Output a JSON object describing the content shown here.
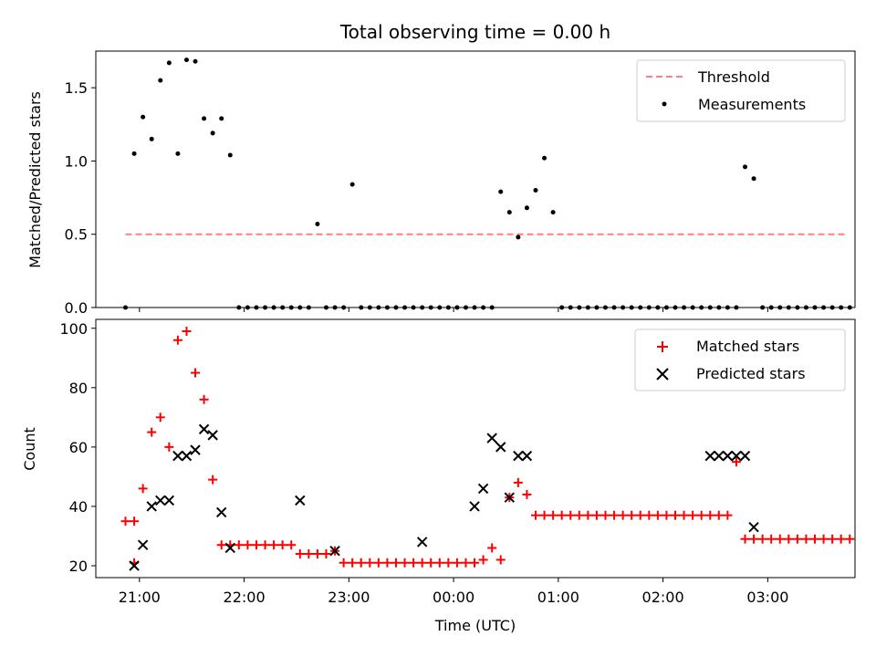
{
  "figure": {
    "title": "Total observing time = 0.00 h"
  },
  "colors": {
    "threshold": "#ff7f7f",
    "measurements": "#000000",
    "matched": "#ff0000",
    "predicted": "#000000"
  },
  "chart_data": [
    {
      "type": "scatter",
      "panel": "top",
      "ylabel": "Matched/Predicted stars",
      "xlabel": "",
      "ylim": [
        0,
        1.75
      ],
      "yticks": [
        0.0,
        0.5,
        1.0,
        1.5
      ],
      "ytick_labels": [
        "0.0",
        "0.5",
        "1.0",
        "1.5"
      ],
      "legend_position": "top-right",
      "legend": [
        "Threshold",
        "Measurements"
      ],
      "series": [
        {
          "name": "Threshold",
          "kind": "dashed-line",
          "x": [
            "20:52",
            "03:45"
          ],
          "y": [
            0.5,
            0.5
          ]
        },
        {
          "name": "Measurements",
          "kind": "points",
          "x": [
            "20:52",
            "20:57",
            "21:02",
            "21:07",
            "21:12",
            "21:17",
            "21:22",
            "21:27",
            "21:32",
            "21:37",
            "21:42",
            "21:47",
            "21:52",
            "21:57",
            "22:02",
            "22:07",
            "22:12",
            "22:17",
            "22:22",
            "22:27",
            "22:32",
            "22:37",
            "22:42",
            "22:47",
            "22:52",
            "22:57",
            "23:02",
            "23:07",
            "23:12",
            "23:17",
            "23:22",
            "23:27",
            "23:32",
            "23:37",
            "23:42",
            "23:47",
            "23:52",
            "23:57",
            "00:02",
            "00:07",
            "00:12",
            "00:17",
            "00:22",
            "00:27",
            "00:32",
            "00:37",
            "00:42",
            "00:47",
            "00:52",
            "00:57",
            "01:02",
            "01:07",
            "01:12",
            "01:17",
            "01:22",
            "01:27",
            "01:32",
            "01:37",
            "01:42",
            "01:47",
            "01:52",
            "01:57",
            "02:02",
            "02:07",
            "02:12",
            "02:17",
            "02:22",
            "02:27",
            "02:32",
            "02:37",
            "02:42",
            "02:47",
            "02:52",
            "02:57",
            "03:02",
            "03:07",
            "03:12",
            "03:17",
            "03:22",
            "03:27",
            "03:32",
            "03:37",
            "03:42",
            "03:47"
          ],
          "y": [
            0.0,
            1.05,
            1.3,
            1.15,
            1.55,
            1.67,
            1.05,
            1.69,
            1.68,
            1.29,
            1.19,
            1.29,
            1.04,
            0.0,
            0.0,
            0.0,
            0.0,
            0.0,
            0.0,
            0.0,
            0.0,
            0.0,
            0.57,
            0.0,
            0.0,
            0.0,
            0.84,
            0.0,
            0.0,
            0.0,
            0.0,
            0.0,
            0.0,
            0.0,
            0.0,
            0.0,
            0.0,
            0.0,
            0.0,
            0.0,
            0.0,
            0.0,
            0.0,
            0.79,
            0.65,
            0.48,
            0.68,
            0.8,
            1.02,
            0.65,
            0.0,
            0.0,
            0.0,
            0.0,
            0.0,
            0.0,
            0.0,
            0.0,
            0.0,
            0.0,
            0.0,
            0.0,
            0.0,
            0.0,
            0.0,
            0.0,
            0.0,
            0.0,
            0.0,
            0.0,
            0.0,
            0.96,
            0.88,
            0.0,
            0.0,
            0.0,
            0.0,
            0.0,
            0.0,
            0.0,
            0.0,
            0.0,
            0.0,
            0.0
          ]
        }
      ]
    },
    {
      "type": "scatter",
      "panel": "bottom",
      "ylabel": "Count",
      "xlabel": "Time (UTC)",
      "xlim": [
        "20:35",
        "03:50"
      ],
      "ylim": [
        16,
        103
      ],
      "yticks": [
        20,
        40,
        60,
        80,
        100
      ],
      "ytick_labels": [
        "20",
        "40",
        "60",
        "80",
        "100"
      ],
      "xticks": [
        "21:00",
        "22:00",
        "23:00",
        "00:00",
        "01:00",
        "02:00",
        "03:00"
      ],
      "legend_position": "top-right",
      "legend": [
        "Matched stars",
        "Predicted stars"
      ],
      "series": [
        {
          "name": "Matched stars",
          "marker": "+",
          "x": [
            "20:52",
            "20:57",
            "20:57",
            "21:02",
            "21:07",
            "21:12",
            "21:17",
            "21:22",
            "21:27",
            "21:32",
            "21:37",
            "21:42",
            "21:47",
            "21:52",
            "21:57",
            "22:02",
            "22:07",
            "22:12",
            "22:17",
            "22:22",
            "22:27",
            "22:32",
            "22:37",
            "22:42",
            "22:47",
            "22:52",
            "22:57",
            "23:02",
            "23:07",
            "23:12",
            "23:17",
            "23:22",
            "23:27",
            "23:32",
            "23:37",
            "23:42",
            "23:47",
            "23:52",
            "23:57",
            "00:02",
            "00:07",
            "00:12",
            "00:17",
            "00:22",
            "00:27",
            "00:32",
            "00:37",
            "00:42",
            "00:47",
            "00:52",
            "00:57",
            "01:02",
            "01:07",
            "01:12",
            "01:17",
            "01:22",
            "01:27",
            "01:32",
            "01:37",
            "01:42",
            "01:47",
            "01:52",
            "01:57",
            "02:02",
            "02:07",
            "02:12",
            "02:17",
            "02:22",
            "02:27",
            "02:32",
            "02:37",
            "02:42",
            "02:47",
            "02:52",
            "02:57",
            "03:02",
            "03:07",
            "03:12",
            "03:17",
            "03:22",
            "03:27",
            "03:32",
            "03:37",
            "03:42",
            "03:47"
          ],
          "y": [
            35,
            21,
            35,
            46,
            65,
            70,
            60,
            96,
            99,
            85,
            76,
            49,
            27,
            27,
            27,
            27,
            27,
            27,
            27,
            27,
            27,
            24,
            24,
            24,
            24,
            25,
            21,
            21,
            21,
            21,
            21,
            21,
            21,
            21,
            21,
            21,
            21,
            21,
            21,
            21,
            21,
            21,
            22,
            26,
            22,
            43,
            48,
            44,
            37,
            37,
            37,
            37,
            37,
            37,
            37,
            37,
            37,
            37,
            37,
            37,
            37,
            37,
            37,
            37,
            37,
            37,
            37,
            37,
            37,
            37,
            37,
            55,
            29,
            29,
            29,
            29,
            29,
            29,
            29,
            29,
            29,
            29,
            29,
            29,
            29
          ]
        },
        {
          "name": "Predicted stars",
          "marker": "x",
          "x": [
            "20:57",
            "21:02",
            "21:07",
            "21:12",
            "21:17",
            "21:22",
            "21:27",
            "21:32",
            "21:37",
            "21:42",
            "21:47",
            "21:52",
            "22:32",
            "22:52",
            "23:42",
            "00:12",
            "00:17",
            "00:22",
            "00:27",
            "00:32",
            "00:37",
            "00:42",
            "02:27",
            "02:32",
            "02:37",
            "02:42",
            "02:47",
            "02:52"
          ],
          "y": [
            20,
            27,
            40,
            42,
            42,
            57,
            57,
            59,
            66,
            64,
            38,
            26,
            42,
            25,
            28,
            40,
            46,
            63,
            60,
            43,
            57,
            57,
            57,
            57,
            57,
            57,
            57,
            33
          ]
        }
      ]
    }
  ]
}
